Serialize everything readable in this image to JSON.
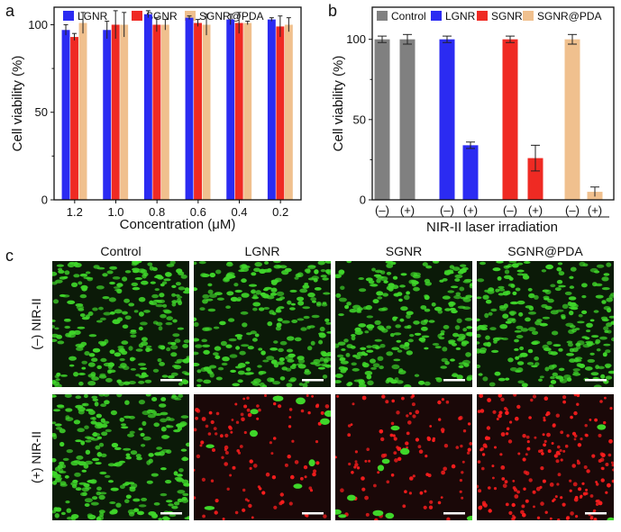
{
  "panel_letters": {
    "a": "a",
    "b": "b",
    "c": "c"
  },
  "colors": {
    "LGNR": "#2b2bf2",
    "SGNR": "#ef2a23",
    "SGNR@PDA": "#f0c08e",
    "Control": "#808080",
    "cell_green": "#3fd62a",
    "cell_red": "#ff1e1e",
    "micro_bg": "#0b1a08",
    "micro_bg_dead": "#1a0808"
  },
  "chart_data": [
    {
      "id": "a",
      "type": "bar",
      "title": "",
      "xlabel": "Concentration (μM)",
      "ylabel": "Cell viability (%)",
      "ylim": [
        0,
        110
      ],
      "yticks": [
        0,
        50,
        100
      ],
      "legend_position": "top",
      "categories": [
        "1.2",
        "1.0",
        "0.8",
        "0.6",
        "0.4",
        "0.2"
      ],
      "series": [
        {
          "name": "LGNR",
          "values": [
            97,
            97,
            106,
            104,
            103,
            103
          ],
          "errors": [
            3,
            5,
            2,
            1,
            3,
            1
          ]
        },
        {
          "name": "SGNR",
          "values": [
            93,
            100,
            100,
            101,
            101,
            99
          ],
          "errors": [
            2,
            8,
            4,
            2,
            6,
            6
          ]
        },
        {
          "name": "SGNR@PDA",
          "values": [
            101,
            100,
            100,
            100,
            101,
            100
          ],
          "errors": [
            6,
            7,
            3,
            6,
            1,
            4
          ]
        }
      ]
    },
    {
      "id": "b",
      "type": "bar",
      "title": "",
      "xlabel": "NIR-II laser irradiation",
      "ylabel": "Cell viability (%)",
      "ylim": [
        0,
        120
      ],
      "yticks": [
        0,
        50,
        100
      ],
      "legend_position": "top",
      "legend": [
        "Control",
        "LGNR",
        "SGNR",
        "SGNR@PDA"
      ],
      "categories": [
        "(–)",
        "(+)",
        "(–)",
        "(+)",
        "(–)",
        "(+)",
        "(–)",
        "(+)"
      ],
      "groups": [
        "Control",
        "Control",
        "LGNR",
        "LGNR",
        "SGNR",
        "SGNR",
        "SGNR@PDA",
        "SGNR@PDA"
      ],
      "values": [
        100,
        100,
        100,
        34,
        100,
        26,
        100,
        5
      ],
      "errors": [
        2,
        3,
        2,
        2,
        2,
        8,
        3,
        3
      ]
    }
  ],
  "micrographs": {
    "columns": [
      "Control",
      "LGNR",
      "SGNR",
      "SGNR@PDA"
    ],
    "rows": [
      "(–) NIR-II",
      "(+) NIR-II"
    ]
  }
}
